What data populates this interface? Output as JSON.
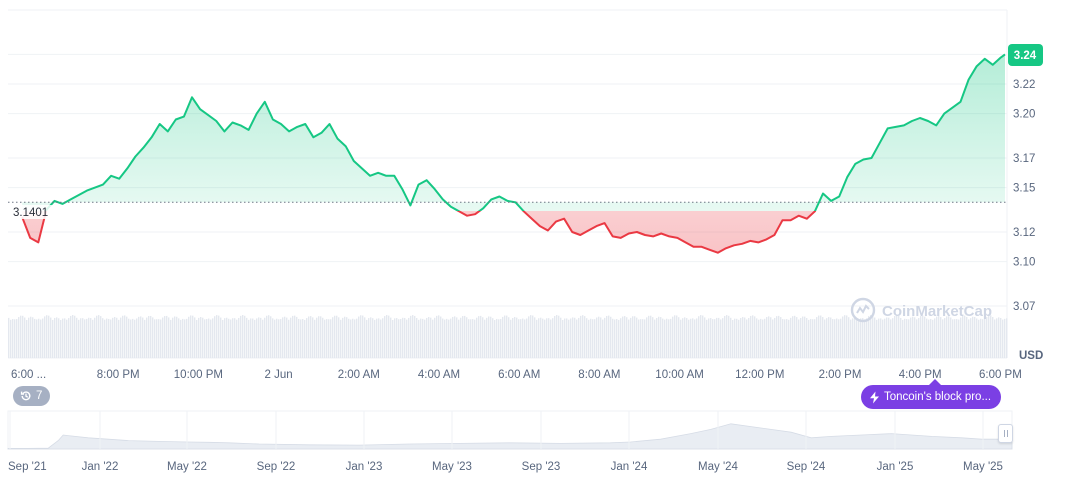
{
  "chart_data": {
    "type": "area",
    "currency": "USD",
    "baseline_label": "3.1401",
    "baseline_value": 3.1401,
    "last_price_label": "3.24",
    "last_price": 3.24,
    "ylim": [
      3.05,
      3.265
    ],
    "y_ticks": [
      3.07,
      3.1,
      3.12,
      3.15,
      3.17,
      3.2,
      3.22
    ],
    "y_tick_labels": [
      "3.07",
      "3.10",
      "3.12",
      "3.15",
      "3.17",
      "3.20",
      "3.22"
    ],
    "x_ticks": [
      {
        "label": "6:00 ...",
        "t": 0
      },
      {
        "label": "8:00 PM",
        "t": 2
      },
      {
        "label": "10:00 PM",
        "t": 4
      },
      {
        "label": "2 Jun",
        "t": 6
      },
      {
        "label": "2:00 AM",
        "t": 8
      },
      {
        "label": "4:00 AM",
        "t": 10
      },
      {
        "label": "6:00 AM",
        "t": 12
      },
      {
        "label": "8:00 AM",
        "t": 14
      },
      {
        "label": "10:00 AM",
        "t": 16
      },
      {
        "label": "12:00 PM",
        "t": 18
      },
      {
        "label": "2:00 PM",
        "t": 20
      },
      {
        "label": "4:00 PM",
        "t": 22
      },
      {
        "label": "6:00 PM",
        "t": 24
      }
    ],
    "xlim": [
      0.05,
      24.75
    ],
    "series": [
      {
        "t": [
          0.4,
          0.6,
          0.8,
          1.0,
          1.2,
          1.4,
          1.6,
          1.8,
          2.0,
          2.2,
          2.4,
          2.6,
          2.8,
          3.0,
          3.2,
          3.4,
          3.6,
          3.8,
          4.0,
          4.2,
          4.4,
          4.6,
          4.8,
          5.0,
          5.2,
          5.4,
          5.6,
          5.8,
          6.0,
          6.2,
          6.4,
          6.6,
          6.8,
          7.0,
          7.2,
          7.4,
          7.6,
          7.8,
          8.0,
          8.2,
          8.4,
          8.6,
          8.8,
          9.0,
          9.2,
          9.4,
          9.6,
          9.8,
          10.0,
          10.2,
          10.4,
          10.6,
          10.8,
          11.0,
          11.2,
          11.4,
          11.6,
          11.8,
          12.0,
          12.2,
          12.4,
          12.6,
          12.8,
          13.0,
          13.2,
          13.4,
          13.6,
          13.8,
          14.0,
          14.2,
          14.4,
          14.6,
          14.8,
          15.0,
          15.2,
          15.4,
          15.6,
          15.8,
          16.0,
          16.2,
          16.4,
          16.6,
          16.8,
          17.0,
          17.2,
          17.4,
          17.6,
          17.8,
          18.0,
          18.2,
          18.4,
          18.6,
          18.8,
          19.0,
          19.2,
          19.4,
          19.6,
          19.8,
          20.0,
          20.2,
          20.4,
          20.6,
          20.8,
          21.0,
          21.2,
          21.4,
          21.6,
          21.8,
          22.0,
          22.2,
          22.4,
          22.6,
          22.8,
          23.0,
          23.2,
          23.4,
          23.6,
          23.8,
          24.0,
          24.2,
          24.4,
          24.6,
          24.7
        ],
        "price": [
          3.13,
          3.116,
          3.113,
          3.135,
          3.141,
          3.139,
          3.142,
          3.145,
          3.148,
          3.15,
          3.152,
          3.158,
          3.156,
          3.163,
          3.171,
          3.177,
          3.184,
          3.193,
          3.188,
          3.196,
          3.198,
          3.211,
          3.203,
          3.199,
          3.195,
          3.188,
          3.194,
          3.192,
          3.189,
          3.2,
          3.208,
          3.196,
          3.193,
          3.188,
          3.191,
          3.193,
          3.184,
          3.187,
          3.193,
          3.183,
          3.178,
          3.168,
          3.163,
          3.158,
          3.16,
          3.158,
          3.158,
          3.149,
          3.138,
          3.152,
          3.155,
          3.149,
          3.142,
          3.137,
          3.134,
          3.131,
          3.132,
          3.136,
          3.142,
          3.144,
          3.141,
          3.14,
          3.134,
          3.129,
          3.124,
          3.121,
          3.127,
          3.129,
          3.12,
          3.118,
          3.121,
          3.124,
          3.126,
          3.117,
          3.116,
          3.119,
          3.12,
          3.118,
          3.117,
          3.119,
          3.117,
          3.116,
          3.113,
          3.11,
          3.11,
          3.108,
          3.106,
          3.109,
          3.111,
          3.112,
          3.114,
          3.113,
          3.115,
          3.118,
          3.128,
          3.128,
          3.131,
          3.129,
          3.134,
          3.146,
          3.141,
          3.144,
          3.157,
          3.166,
          3.169,
          3.17,
          3.18,
          3.19,
          3.191,
          3.192,
          3.195,
          3.197,
          3.195,
          3.192,
          3.2,
          3.204,
          3.208,
          3.223,
          3.232,
          3.237,
          3.233,
          3.238,
          3.24
        ]
      }
    ],
    "volume_bars": "present",
    "navigator_x_ticks": [
      "Sep '21",
      "Jan '22",
      "May '22",
      "Sep '22",
      "Jan '23",
      "May '23",
      "Sep '23",
      "Jan '24",
      "May '24",
      "Sep '24",
      "Jan '25",
      "May '25"
    ],
    "navigator_series": {
      "t": [
        0,
        0.02,
        0.04,
        0.05,
        0.055,
        0.06,
        0.08,
        0.1,
        0.12,
        0.15,
        0.18,
        0.2,
        0.22,
        0.25,
        0.3,
        0.35,
        0.4,
        0.45,
        0.5,
        0.55,
        0.6,
        0.62,
        0.65,
        0.68,
        0.7,
        0.72,
        0.75,
        0.78,
        0.8,
        0.82,
        0.85,
        0.88,
        0.9,
        0.92,
        0.95,
        0.97,
        1.0
      ],
      "value": [
        0.02,
        0.02,
        0.03,
        0.3,
        0.5,
        0.48,
        0.4,
        0.35,
        0.3,
        0.27,
        0.25,
        0.24,
        0.22,
        0.18,
        0.15,
        0.14,
        0.18,
        0.2,
        0.22,
        0.2,
        0.22,
        0.25,
        0.35,
        0.55,
        0.7,
        0.9,
        0.75,
        0.6,
        0.4,
        0.45,
        0.5,
        0.55,
        0.5,
        0.45,
        0.4,
        0.35,
        0.35
      ]
    }
  },
  "watermark": "CoinMarketCap",
  "axis_unit": "USD",
  "events_badge": {
    "count": "7",
    "icon": "history-icon"
  },
  "news_badge": {
    "text": "Toncoin's block pro...",
    "icon": "lightning-icon",
    "color": "#7b3fe4"
  },
  "colors": {
    "up": "#16c784",
    "down": "#ea3943",
    "axis_text": "#58667e"
  }
}
